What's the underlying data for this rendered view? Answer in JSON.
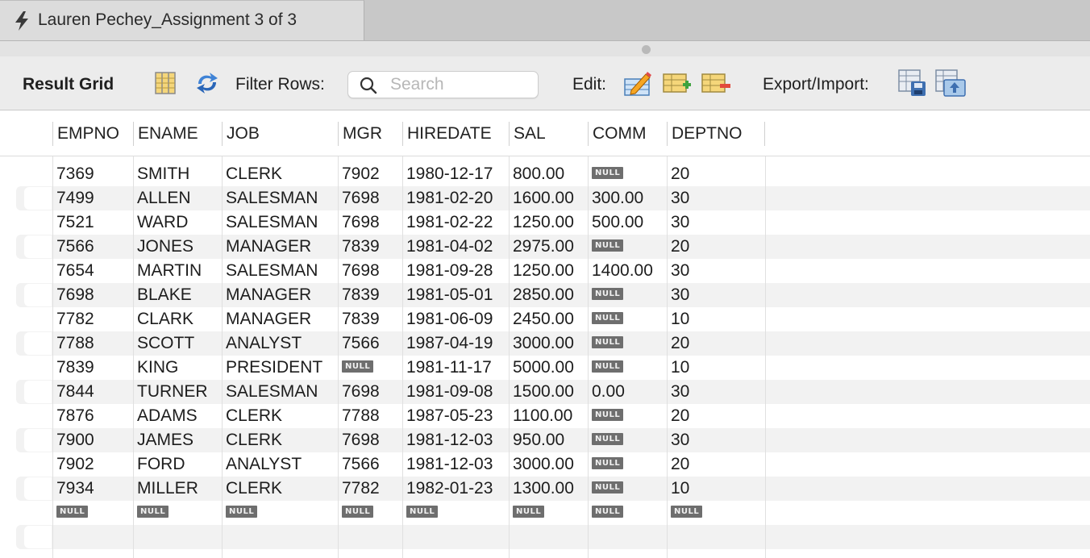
{
  "tab": {
    "title": "Lauren Pechey_Assignment 3 of 3",
    "icon": "lightning-bolt-icon"
  },
  "toolbar": {
    "result_label": "Result Grid",
    "filter_label": "Filter Rows:",
    "search_placeholder": "Search",
    "search_value": "",
    "edit_label": "Edit:",
    "export_label": "Export/Import:"
  },
  "grid": {
    "null_text": "NULL",
    "columns": [
      "EMPNO",
      "ENAME",
      "JOB",
      "MGR",
      "HIREDATE",
      "SAL",
      "COMM",
      "DEPTNO"
    ],
    "rows": [
      [
        "7369",
        "SMITH",
        "CLERK",
        "7902",
        "1980-12-17",
        "800.00",
        null,
        "20"
      ],
      [
        "7499",
        "ALLEN",
        "SALESMAN",
        "7698",
        "1981-02-20",
        "1600.00",
        "300.00",
        "30"
      ],
      [
        "7521",
        "WARD",
        "SALESMAN",
        "7698",
        "1981-02-22",
        "1250.00",
        "500.00",
        "30"
      ],
      [
        "7566",
        "JONES",
        "MANAGER",
        "7839",
        "1981-04-02",
        "2975.00",
        null,
        "20"
      ],
      [
        "7654",
        "MARTIN",
        "SALESMAN",
        "7698",
        "1981-09-28",
        "1250.00",
        "1400.00",
        "30"
      ],
      [
        "7698",
        "BLAKE",
        "MANAGER",
        "7839",
        "1981-05-01",
        "2850.00",
        null,
        "30"
      ],
      [
        "7782",
        "CLARK",
        "MANAGER",
        "7839",
        "1981-06-09",
        "2450.00",
        null,
        "10"
      ],
      [
        "7788",
        "SCOTT",
        "ANALYST",
        "7566",
        "1987-04-19",
        "3000.00",
        null,
        "20"
      ],
      [
        "7839",
        "KING",
        "PRESIDENT",
        null,
        "1981-11-17",
        "5000.00",
        null,
        "10"
      ],
      [
        "7844",
        "TURNER",
        "SALESMAN",
        "7698",
        "1981-09-08",
        "1500.00",
        "0.00",
        "30"
      ],
      [
        "7876",
        "ADAMS",
        "CLERK",
        "7788",
        "1987-05-23",
        "1100.00",
        null,
        "20"
      ],
      [
        "7900",
        "JAMES",
        "CLERK",
        "7698",
        "1981-12-03",
        "950.00",
        null,
        "30"
      ],
      [
        "7902",
        "FORD",
        "ANALYST",
        "7566",
        "1981-12-03",
        "3000.00",
        null,
        "20"
      ],
      [
        "7934",
        "MILLER",
        "CLERK",
        "7782",
        "1982-01-23",
        "1300.00",
        null,
        "10"
      ],
      [
        null,
        null,
        null,
        null,
        null,
        null,
        null,
        null
      ]
    ]
  }
}
